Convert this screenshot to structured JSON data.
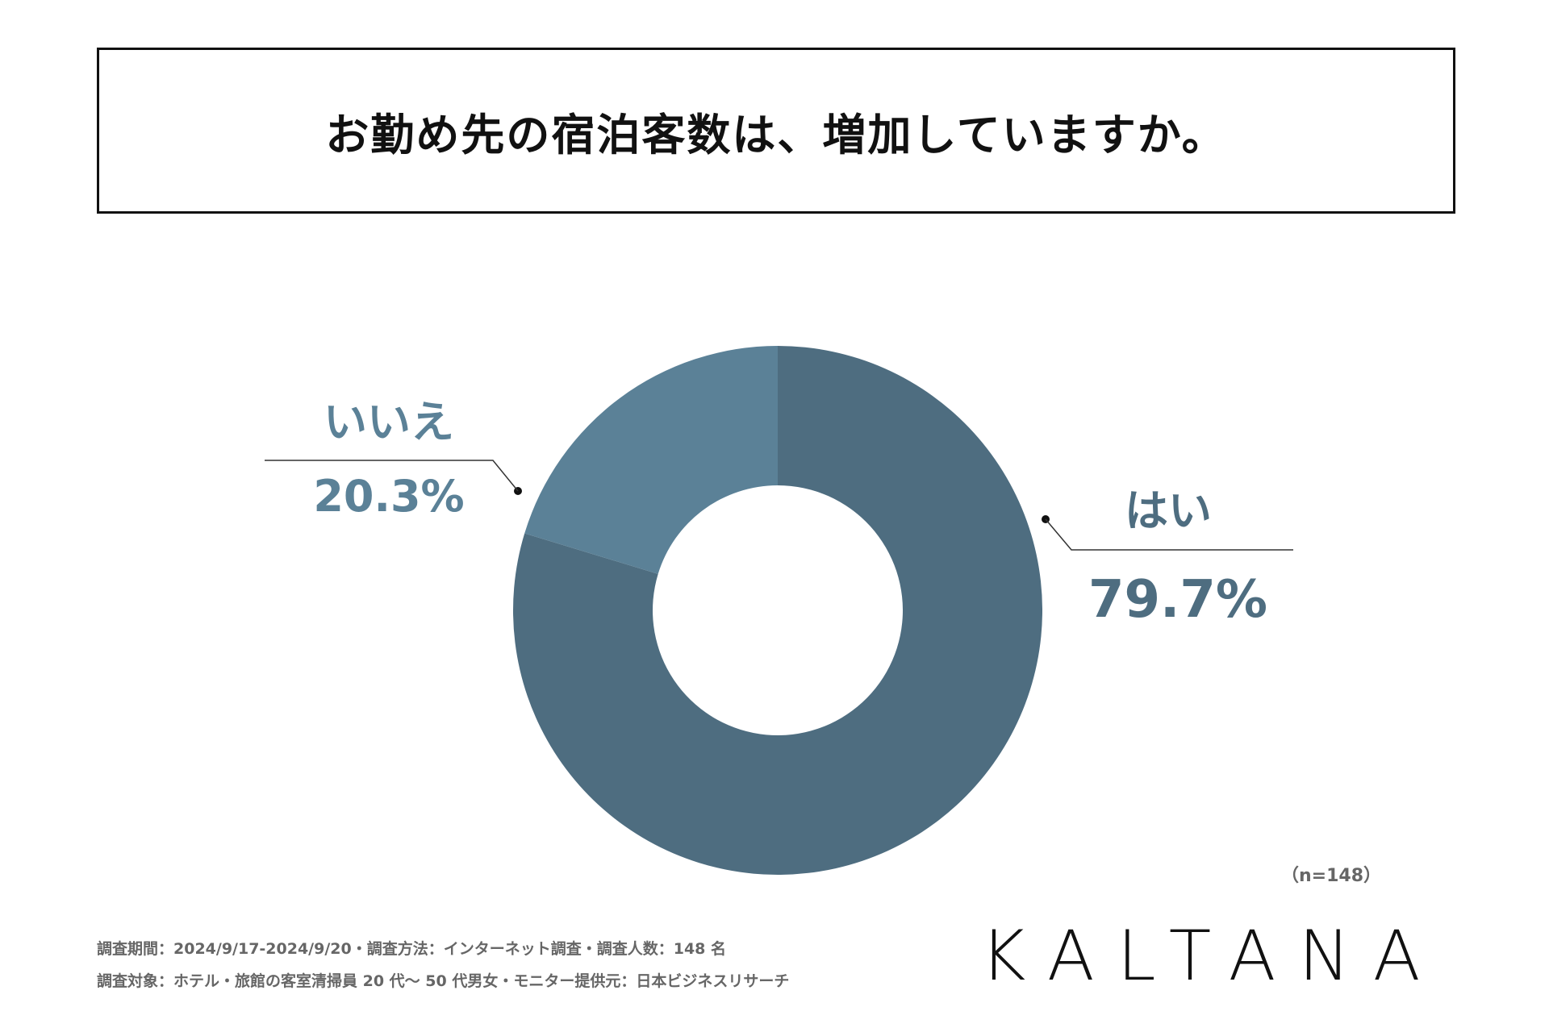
{
  "title": "お勤め先の宿泊客数は、増加していますか。",
  "chart_data": {
    "type": "pie",
    "donut": true,
    "categories": [
      "はい",
      "いいえ"
    ],
    "values": [
      79.7,
      20.3
    ],
    "value_labels": [
      "79.7%",
      "20.3%"
    ],
    "colors": [
      "#4e6d80",
      "#5b8197"
    ],
    "legend": "none"
  },
  "sample_size": "（n=148）",
  "footer": {
    "line1": "調査期間：2024/9/17-2024/9/20・調査方法：インターネット調査・調査人数：148 名",
    "line2": "調査対象：ホテル・旅館の客室清掃員 20 代〜 50 代男女・モニター提供元：日本ビジネスリサーチ"
  },
  "logo": "KALTANA"
}
